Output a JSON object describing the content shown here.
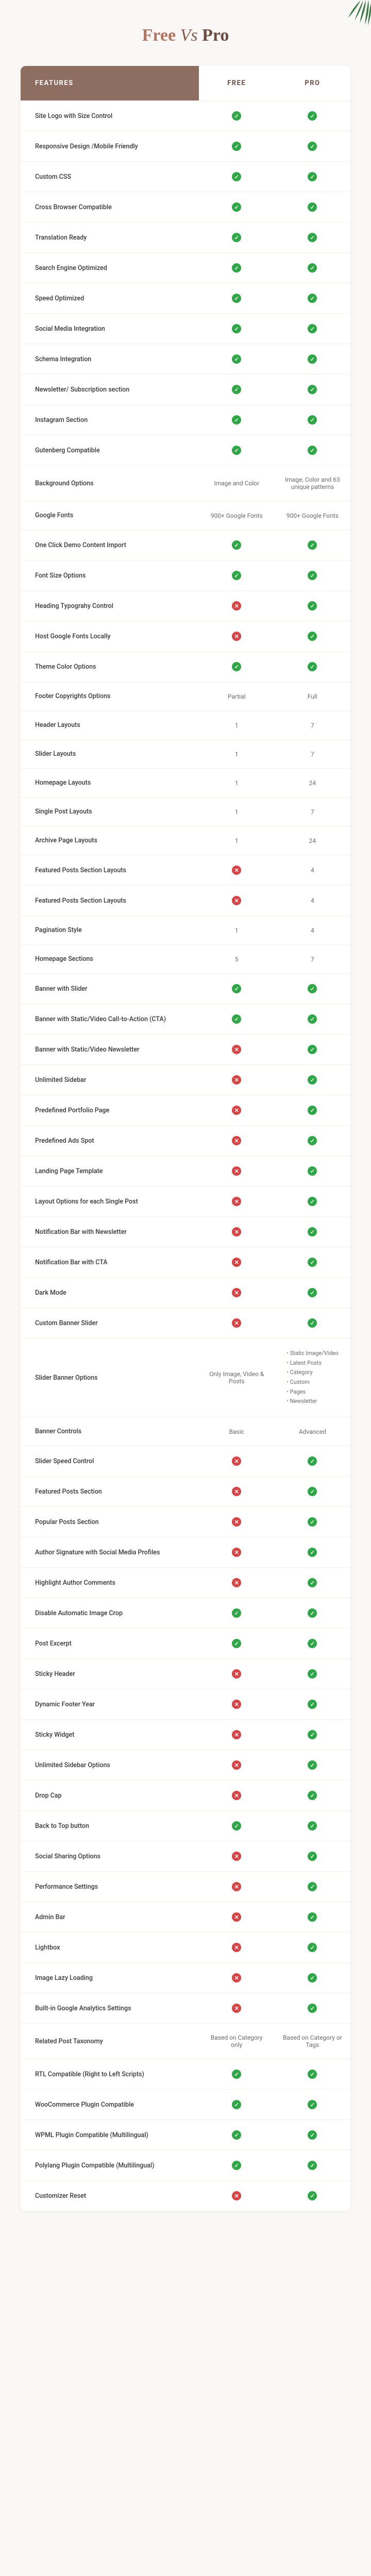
{
  "title": {
    "free": "Free",
    "vs": "Vs",
    "pro": "Pro"
  },
  "headers": {
    "features": "FEATURES",
    "free": "FREE",
    "pro": "PRO"
  },
  "colors": {
    "header_bg": "#8f6e62",
    "check": "#2ea846",
    "cross": "#d94343",
    "page_bg": "#faf8f6",
    "border": "#f2eee9",
    "title_free": "#b5755f",
    "title_pro": "#6b4a3f"
  },
  "rows": [
    {
      "label": "Site Logo with Size Control",
      "free": "check",
      "pro": "check"
    },
    {
      "label": "Responsive Design /Mobile Friendly",
      "free": "check",
      "pro": "check"
    },
    {
      "label": "Custom CSS",
      "free": "check",
      "pro": "check"
    },
    {
      "label": "Cross Browser Compatible",
      "free": "check",
      "pro": "check"
    },
    {
      "label": "Translation Ready",
      "free": "check",
      "pro": "check"
    },
    {
      "label": "Search Engine Optimized",
      "free": "check",
      "pro": "check"
    },
    {
      "label": "Speed Optimized",
      "free": "check",
      "pro": "check"
    },
    {
      "label": "Social Media Integration",
      "free": "check",
      "pro": "check"
    },
    {
      "label": "Schema Integration",
      "free": "check",
      "pro": "check"
    },
    {
      "label": "Newsletter/ Subscription section",
      "free": "check",
      "pro": "check"
    },
    {
      "label": "Instagram Section",
      "free": "check",
      "pro": "check"
    },
    {
      "label": "Gutenberg Compatible",
      "free": "check",
      "pro": "check"
    },
    {
      "label": "Background Options",
      "free": "Image and Color",
      "pro": "Image, Color and 63 unique patterns"
    },
    {
      "label": "Google Fonts",
      "free": "900+ Google Fonts",
      "pro": "900+ Google Fonts"
    },
    {
      "label": "One Click Demo Content Import",
      "free": "check",
      "pro": "check"
    },
    {
      "label": "Font Size Options",
      "free": "check",
      "pro": "check"
    },
    {
      "label": "Heading Typograhy Control",
      "free": "cross",
      "pro": "check"
    },
    {
      "label": "Host Google Fonts Locally",
      "free": "cross",
      "pro": "check"
    },
    {
      "label": "Theme Color Options",
      "free": "check",
      "pro": "check"
    },
    {
      "label": "Footer Copyrights Options",
      "free": "Partial",
      "pro": "Full"
    },
    {
      "label": "Header Layouts",
      "free": "1",
      "pro": "7"
    },
    {
      "label": "Slider Layouts",
      "free": "1",
      "pro": "7"
    },
    {
      "label": "Homepage Layouts",
      "free": "1",
      "pro": "24"
    },
    {
      "label": "Single Post Layouts",
      "free": "1",
      "pro": "7"
    },
    {
      "label": "Archive Page Layouts",
      "free": "1",
      "pro": "24"
    },
    {
      "label": "Featured Posts Section Layouts",
      "free": "cross",
      "pro": "4"
    },
    {
      "label": "Featured Posts Section Layouts",
      "free": "cross",
      "pro": "4"
    },
    {
      "label": "Pagination Style",
      "free": "1",
      "pro": "4"
    },
    {
      "label": "Homepage Sections",
      "free": "5",
      "pro": "7"
    },
    {
      "label": "Banner with Slider",
      "free": "check",
      "pro": "check"
    },
    {
      "label": "Banner with Static/Video Call-to-Action (CTA)",
      "free": "check",
      "pro": "check"
    },
    {
      "label": "Banner with Static/Video Newsletter",
      "free": "cross",
      "pro": "check"
    },
    {
      "label": "Unlimited Sidebar",
      "free": "cross",
      "pro": "check"
    },
    {
      "label": "Predefined Portfolio Page",
      "free": "cross",
      "pro": "check"
    },
    {
      "label": "Predefined Ads Spot",
      "free": "cross",
      "pro": "check"
    },
    {
      "label": "Landing Page Template",
      "free": "cross",
      "pro": "check"
    },
    {
      "label": "Layout Options for each Single Post",
      "free": "cross",
      "pro": "check"
    },
    {
      "label": "Notification Bar with Newsletter",
      "free": "cross",
      "pro": "check"
    },
    {
      "label": "Notification Bar with CTA",
      "free": "cross",
      "pro": "check"
    },
    {
      "label": "Dark Mode",
      "free": "cross",
      "pro": "check"
    },
    {
      "label": "Custom Banner Slider",
      "free": "cross",
      "pro": "check"
    },
    {
      "label": "Slider Banner Options",
      "free": "Only Image, Video & Posts",
      "pro_list": [
        "Static Image/Video",
        "Latest Posts",
        "Category",
        "Custom",
        "Pages",
        "Newsletter"
      ]
    },
    {
      "label": "Banner Controls",
      "free": "Basic",
      "pro": "Advanced"
    },
    {
      "label": "Slider Speed Control",
      "free": "cross",
      "pro": "check"
    },
    {
      "label": "Featured Posts Section",
      "free": "cross",
      "pro": "check"
    },
    {
      "label": "Popular Posts Section",
      "free": "cross",
      "pro": "check"
    },
    {
      "label": "Author Signature with Social Media Profiles",
      "free": "cross",
      "pro": "check"
    },
    {
      "label": "Highlight Author Comments",
      "free": "cross",
      "pro": "check"
    },
    {
      "label": "Disable Automatic Image Crop",
      "free": "check",
      "pro": "check"
    },
    {
      "label": "Post Excerpt",
      "free": "check",
      "pro": "check"
    },
    {
      "label": "Sticky Header",
      "free": "cross",
      "pro": "check"
    },
    {
      "label": "Dynamic Footer Year",
      "free": "cross",
      "pro": "check"
    },
    {
      "label": "Sticky Widget",
      "free": "cross",
      "pro": "check"
    },
    {
      "label": "Unlimited Sidebar Options",
      "free": "cross",
      "pro": "check"
    },
    {
      "label": "Drop Cap",
      "free": "cross",
      "pro": "check"
    },
    {
      "label": "Back to Top button",
      "free": "check",
      "pro": "check"
    },
    {
      "label": "Social Sharing Options",
      "free": "cross",
      "pro": "check"
    },
    {
      "label": "Performance Settings",
      "free": "cross",
      "pro": "check"
    },
    {
      "label": "Admin Bar",
      "free": "cross",
      "pro": "check"
    },
    {
      "label": "Lightbox",
      "free": "cross",
      "pro": "check"
    },
    {
      "label": "Image Lazy Loading",
      "free": "cross",
      "pro": "check"
    },
    {
      "label": "Built-in Google Analytics Settings",
      "free": "cross",
      "pro": "check"
    },
    {
      "label": "Related Post Taxonomy",
      "free": "Based on Category only",
      "pro": "Based on Category or Tags"
    },
    {
      "label": "RTL Compatible (Right to Left Scripts)",
      "free": "check",
      "pro": "check"
    },
    {
      "label": "WooCommerce Plugin Compatible",
      "free": "check",
      "pro": "check"
    },
    {
      "label": "WPML Plugin Compatible (Multilingual)",
      "free": "check",
      "pro": "check"
    },
    {
      "label": "Polylang Plugin Compatible (Multilingual)",
      "free": "check",
      "pro": "check"
    },
    {
      "label": "Customizer Reset",
      "free": "cross",
      "pro": "check"
    }
  ]
}
